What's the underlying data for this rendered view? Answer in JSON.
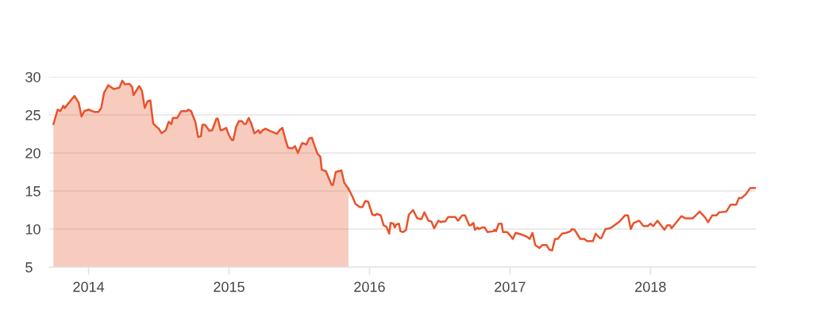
{
  "chart_data": {
    "type": "line",
    "series": [
      {
        "type": "area",
        "color": "#e8532b",
        "x": [
          2013.75,
          2013.78,
          2013.8,
          2013.82,
          2013.83,
          2013.86,
          2013.9,
          2013.93,
          2013.95,
          2013.97,
          2014.0,
          2014.04,
          2014.07,
          2014.09,
          2014.11,
          2014.14,
          2014.18,
          2014.22,
          2014.24,
          2014.26,
          2014.29,
          2014.31,
          2014.32,
          2014.33,
          2014.36,
          2014.38,
          2014.4,
          2014.42,
          2014.44,
          2014.46,
          2014.48,
          2014.5,
          2014.52,
          2014.55,
          2014.57,
          2014.59,
          2014.6,
          2014.63,
          2014.66,
          2014.7,
          2014.71,
          2014.73,
          2014.76,
          2014.78,
          2014.8,
          2014.81,
          2014.83,
          2014.86,
          2014.88,
          2014.91,
          2014.92,
          2014.94,
          2014.95,
          2014.98,
          2015.0,
          2015.02,
          2015.03,
          2015.05,
          2015.07,
          2015.09,
          2015.11,
          2015.12,
          2015.14,
          2015.16,
          2015.18,
          2015.19,
          2015.21,
          2015.22,
          2015.24,
          2015.26,
          2015.29,
          2015.32,
          2015.34,
          2015.36,
          2015.38,
          2015.4,
          2015.42,
          2015.45,
          2015.47,
          2015.49,
          2015.52,
          2015.54,
          2015.55,
          2015.57,
          2015.59,
          2015.61,
          2015.63,
          2015.65,
          2015.66,
          2015.69,
          2015.71,
          2015.73,
          2015.74,
          2015.76,
          2015.78,
          2015.8,
          2015.82,
          2015.85
        ],
        "values": [
          23.8,
          25.7,
          25.5,
          26.2,
          25.9,
          26.6,
          27.5,
          26.6,
          24.8,
          25.5,
          25.7,
          25.4,
          25.4,
          25.9,
          27.9,
          28.9,
          28.4,
          28.6,
          29.5,
          29.0,
          29.1,
          28.7,
          27.6,
          27.9,
          28.8,
          28.2,
          25.9,
          26.8,
          26.9,
          23.9,
          23.5,
          23.2,
          22.6,
          23.0,
          24.1,
          23.8,
          24.6,
          24.6,
          25.5,
          25.5,
          25.7,
          25.5,
          24.1,
          22.1,
          22.2,
          23.7,
          23.7,
          22.9,
          23.0,
          24.5,
          24.5,
          23.0,
          23.0,
          23.3,
          22.3,
          21.7,
          21.7,
          23.4,
          24.2,
          24.2,
          23.8,
          23.8,
          24.6,
          23.8,
          22.6,
          22.7,
          23.0,
          22.6,
          23.0,
          23.2,
          22.9,
          22.7,
          22.5,
          23.0,
          23.3,
          21.9,
          20.7,
          20.6,
          20.9,
          20.0,
          21.3,
          21.2,
          21.1,
          21.9,
          22.0,
          20.9,
          19.9,
          19.5,
          17.8,
          17.6,
          16.7,
          15.8,
          15.8,
          17.5,
          17.6,
          17.7,
          16.1,
          15.3
        ]
      },
      {
        "color": "#e8532b",
        "x": [
          2015.85,
          2015.88,
          2015.9,
          2015.93,
          2015.95,
          2015.97,
          2015.99,
          2016.02,
          2016.04,
          2016.05,
          2016.08,
          2016.1,
          2016.12,
          2016.14,
          2016.15,
          2016.17,
          2016.18,
          2016.19,
          2016.21,
          2016.22,
          2016.24,
          2016.26,
          2016.28,
          2016.31,
          2016.34,
          2016.37,
          2016.39,
          2016.42,
          2016.44,
          2016.46,
          2016.49,
          2016.51,
          2016.52,
          2016.54,
          2016.56,
          2016.61,
          2016.63,
          2016.66,
          2016.68,
          2016.71,
          2016.72,
          2016.74,
          2016.75,
          2016.77,
          2016.78,
          2016.8,
          2016.82,
          2016.84,
          2016.88,
          2016.89,
          2016.9,
          2016.92,
          2016.94,
          2016.95,
          2016.98,
          2017.0,
          2017.02,
          2017.04,
          2017.08,
          2017.12,
          2017.14,
          2017.16,
          2017.18,
          2017.21,
          2017.23,
          2017.26,
          2017.28,
          2017.3,
          2017.32,
          2017.34,
          2017.37,
          2017.4,
          2017.43,
          2017.44,
          2017.46,
          2017.5,
          2017.53,
          2017.55,
          2017.59,
          2017.61,
          2017.64,
          2017.65,
          2017.68,
          2017.71,
          2017.73,
          2017.78,
          2017.82,
          2017.84,
          2017.86,
          2017.88,
          2017.92,
          2017.95,
          2017.98,
          2018.0,
          2018.02,
          2018.05,
          2018.1,
          2018.12,
          2018.14,
          2018.15,
          2018.22,
          2018.25,
          2018.3,
          2018.35,
          2018.39,
          2018.41,
          2018.44,
          2018.47,
          2018.49,
          2018.54,
          2018.57,
          2018.61,
          2018.63,
          2018.65,
          2018.68,
          2018.71,
          2018.75
        ],
        "values": [
          15.3,
          14.2,
          13.3,
          12.9,
          12.9,
          13.7,
          13.6,
          11.9,
          11.8,
          12.0,
          11.8,
          10.5,
          10.3,
          9.4,
          10.8,
          10.7,
          10.2,
          10.6,
          10.7,
          9.7,
          9.6,
          9.9,
          11.9,
          12.5,
          11.4,
          11.3,
          12.2,
          11.1,
          11.0,
          10.1,
          11.1,
          10.9,
          11.0,
          11.0,
          11.6,
          11.6,
          11.1,
          11.8,
          11.8,
          10.5,
          10.5,
          10.8,
          9.9,
          10.2,
          10.0,
          10.2,
          10.2,
          9.6,
          9.7,
          9.9,
          9.7,
          10.7,
          10.7,
          9.6,
          9.6,
          9.2,
          8.7,
          9.5,
          9.3,
          9.0,
          8.7,
          9.5,
          7.9,
          7.5,
          7.9,
          7.9,
          7.3,
          7.2,
          8.7,
          8.7,
          9.4,
          9.5,
          9.7,
          10.0,
          9.9,
          8.7,
          8.7,
          8.4,
          8.4,
          9.4,
          8.8,
          8.8,
          10.0,
          10.1,
          10.3,
          11.0,
          11.8,
          11.8,
          10.0,
          10.8,
          11.1,
          10.4,
          10.4,
          10.7,
          10.4,
          11.1,
          9.9,
          10.5,
          10.5,
          10.1,
          11.7,
          11.4,
          11.4,
          12.3,
          11.5,
          10.9,
          11.8,
          11.8,
          12.2,
          12.3,
          13.2,
          13.2,
          14.1,
          14.1,
          14.6,
          15.4,
          15.4
        ]
      }
    ],
    "xlim": [
      2013.72,
      2018.75
    ],
    "xticks": [
      2014,
      2015,
      2016,
      2017,
      2018
    ],
    "ylim": [
      5,
      30
    ],
    "yticks": [
      5,
      10,
      15,
      20,
      25,
      30
    ],
    "grid": "y",
    "marker": "none",
    "line_style": "solid"
  }
}
